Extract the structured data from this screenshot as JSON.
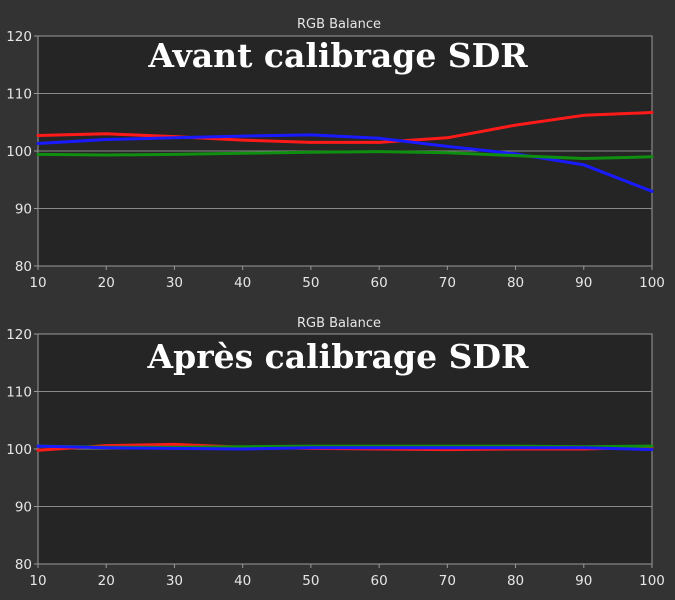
{
  "chart_data": [
    {
      "type": "line",
      "title": "RGB Balance",
      "annotation": "Avant calibrage SDR",
      "x": [
        10,
        20,
        30,
        40,
        50,
        60,
        70,
        80,
        90,
        100
      ],
      "xlim": [
        10,
        100
      ],
      "ylim": [
        80,
        120
      ],
      "xticks": [
        10,
        20,
        30,
        40,
        50,
        60,
        70,
        80,
        90,
        100
      ],
      "yticks": [
        80,
        90,
        100,
        110,
        120
      ],
      "grid": true,
      "series": [
        {
          "color": "#ff1a1a",
          "values": [
            102.7,
            103.0,
            102.5,
            101.9,
            101.5,
            101.5,
            102.3,
            104.5,
            106.2,
            106.7
          ]
        },
        {
          "color": "#1a1aff",
          "values": [
            101.3,
            102.0,
            102.3,
            102.6,
            102.8,
            102.2,
            100.8,
            99.5,
            97.6,
            93.0
          ]
        },
        {
          "color": "#0f8f0f",
          "values": [
            99.4,
            99.3,
            99.4,
            99.6,
            99.8,
            99.9,
            99.7,
            99.2,
            98.7,
            99.0
          ]
        }
      ]
    },
    {
      "type": "line",
      "title": "RGB Balance",
      "annotation": "Après calibrage SDR",
      "x": [
        10,
        20,
        30,
        40,
        50,
        60,
        70,
        80,
        90,
        100
      ],
      "xlim": [
        10,
        100
      ],
      "ylim": [
        80,
        120
      ],
      "xticks": [
        10,
        20,
        30,
        40,
        50,
        60,
        70,
        80,
        90,
        100
      ],
      "yticks": [
        80,
        90,
        100,
        110,
        120
      ],
      "grid": true,
      "series": [
        {
          "color": "#ff1a1a",
          "values": [
            99.8,
            100.6,
            100.8,
            100.3,
            100.1,
            100.0,
            99.9,
            100.0,
            100.0,
            100.3
          ]
        },
        {
          "color": "#0f8f0f",
          "values": [
            100.5,
            100.3,
            100.3,
            100.4,
            100.5,
            100.5,
            100.5,
            100.5,
            100.4,
            100.5
          ]
        },
        {
          "color": "#1a1aff",
          "values": [
            100.5,
            100.2,
            100.1,
            100.0,
            100.2,
            100.2,
            100.2,
            100.2,
            100.2,
            99.9
          ]
        }
      ]
    }
  ]
}
